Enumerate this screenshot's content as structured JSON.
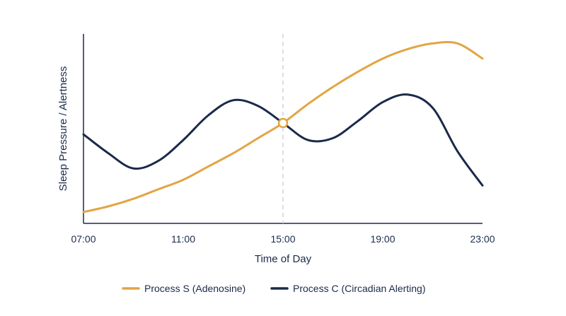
{
  "chart_data": {
    "type": "line",
    "xlabel": "Time of Day",
    "ylabel": "Sleep Pressure / Alertness",
    "x_ticks": [
      "07:00",
      "11:00",
      "15:00",
      "19:00",
      "23:00"
    ],
    "xlim": [
      7,
      23
    ],
    "ylim": [
      0,
      1
    ],
    "grid": false,
    "legend_position": "bottom",
    "reference_line": {
      "x": 15,
      "style": "dashed",
      "color": "#d4d4d4"
    },
    "intersection_marker": {
      "x": 15,
      "y": 0.53
    },
    "series": [
      {
        "name": "Process S (Adenosine)",
        "color": "#e2a544",
        "x": [
          7,
          8,
          9,
          10,
          11,
          12,
          13,
          14,
          15,
          16,
          17,
          18,
          19,
          20,
          21,
          22,
          23
        ],
        "y": [
          0.06,
          0.09,
          0.13,
          0.18,
          0.23,
          0.3,
          0.37,
          0.45,
          0.53,
          0.63,
          0.72,
          0.8,
          0.87,
          0.92,
          0.95,
          0.95,
          0.87
        ]
      },
      {
        "name": "Process C (Circadian Alerting)",
        "color": "#1b2a4a",
        "x": [
          7,
          8,
          9,
          10,
          11,
          12,
          13,
          14,
          15,
          16,
          17,
          18,
          19,
          20,
          21,
          22,
          23
        ],
        "y": [
          0.47,
          0.37,
          0.29,
          0.33,
          0.44,
          0.57,
          0.65,
          0.62,
          0.53,
          0.44,
          0.45,
          0.54,
          0.64,
          0.68,
          0.61,
          0.38,
          0.2
        ]
      }
    ]
  }
}
